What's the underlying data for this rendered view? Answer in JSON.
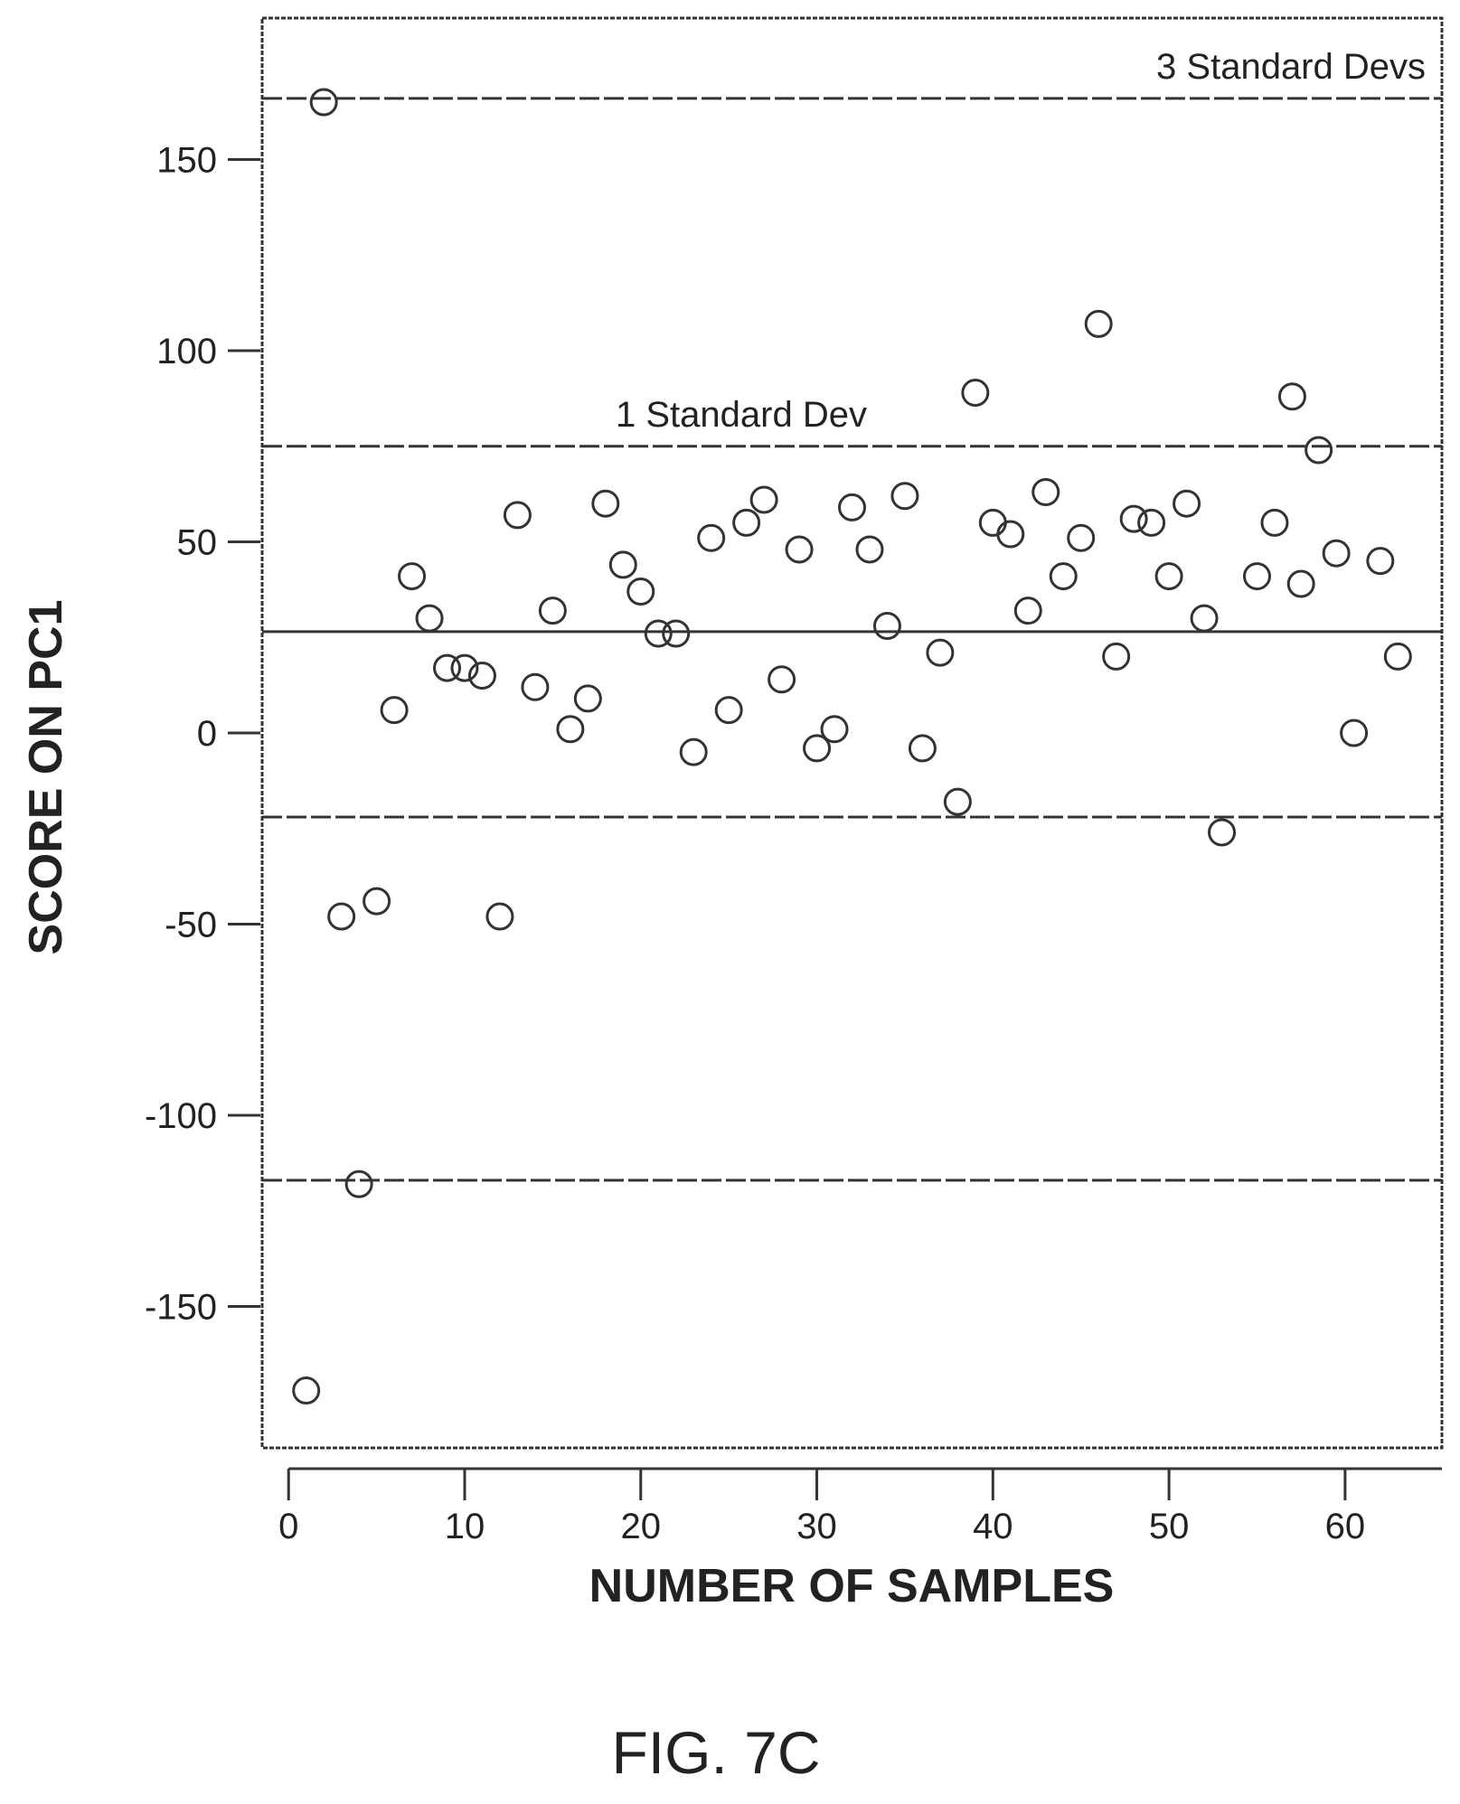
{
  "figure": {
    "caption": "FIG. 7C"
  },
  "chart_data": {
    "type": "scatter",
    "xlabel": "NUMBER OF SAMPLES",
    "ylabel": "SCORE ON PC1",
    "xlim": [
      -1.5,
      65.5
    ],
    "ylim": [
      -187,
      187
    ],
    "xticks": [
      0,
      10,
      20,
      30,
      40,
      50,
      60
    ],
    "yticks": [
      -150,
      -100,
      -50,
      0,
      50,
      100,
      150
    ],
    "xtick_labels": [
      "0",
      "10",
      "20",
      "30",
      "40",
      "50",
      "60"
    ],
    "ytick_labels": [
      "-150",
      "-100",
      "-50",
      "0",
      "50",
      "100",
      "150"
    ],
    "grid": false,
    "marker": "open-circle",
    "reference_lines": [
      {
        "y": 166,
        "style": "dashed",
        "label": "3 Standard Devs"
      },
      {
        "y": 75,
        "style": "dashed",
        "label": "1 Standard Dev"
      },
      {
        "y": 26.5,
        "style": "solid",
        "label": ""
      },
      {
        "y": -22,
        "style": "dashed",
        "label": ""
      },
      {
        "y": -117,
        "style": "dashed",
        "label": ""
      }
    ],
    "points": [
      [
        1,
        -172
      ],
      [
        2,
        165
      ],
      [
        3,
        -48
      ],
      [
        4,
        -118
      ],
      [
        5,
        -44
      ],
      [
        6,
        6
      ],
      [
        7,
        41
      ],
      [
        8,
        30
      ],
      [
        9,
        17
      ],
      [
        10,
        17
      ],
      [
        11,
        15
      ],
      [
        12,
        -48
      ],
      [
        13,
        57
      ],
      [
        14,
        12
      ],
      [
        15,
        32
      ],
      [
        16,
        1
      ],
      [
        17,
        9
      ],
      [
        18,
        60
      ],
      [
        19,
        44
      ],
      [
        20,
        37
      ],
      [
        21,
        26
      ],
      [
        22,
        26
      ],
      [
        23,
        -5
      ],
      [
        24,
        51
      ],
      [
        25,
        6
      ],
      [
        26,
        55
      ],
      [
        27,
        61
      ],
      [
        28,
        14
      ],
      [
        29,
        48
      ],
      [
        30,
        -4
      ],
      [
        31,
        1
      ],
      [
        32,
        59
      ],
      [
        33,
        48
      ],
      [
        34,
        28
      ],
      [
        35,
        62
      ],
      [
        36,
        -4
      ],
      [
        37,
        21
      ],
      [
        38,
        -18
      ],
      [
        39,
        89
      ],
      [
        40,
        55
      ],
      [
        41,
        52
      ],
      [
        42,
        32
      ],
      [
        43,
        63
      ],
      [
        44,
        41
      ],
      [
        45,
        51
      ],
      [
        46,
        107
      ],
      [
        47,
        20
      ],
      [
        48,
        56
      ],
      [
        49,
        55
      ],
      [
        50,
        41
      ],
      [
        51,
        60
      ],
      [
        52,
        30
      ],
      [
        53,
        -26
      ],
      [
        55,
        41
      ],
      [
        56,
        55
      ],
      [
        57,
        88
      ],
      [
        57.5,
        39
      ],
      [
        58.5,
        74
      ],
      [
        59.5,
        47
      ],
      [
        60.5,
        0
      ],
      [
        62,
        45
      ],
      [
        63,
        20
      ]
    ]
  }
}
